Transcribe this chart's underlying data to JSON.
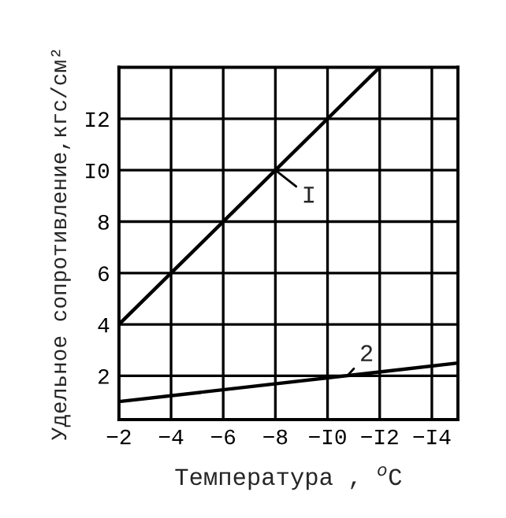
{
  "chart_data": {
    "type": "line",
    "xlabel": "Температура , $^{o}$C",
    "ylabel": "Удельное сопротивление,кгс/см²",
    "xlim": [
      -2,
      -15
    ],
    "ylim": [
      0.3,
      14
    ],
    "xticks": [
      {
        "value": -2,
        "label": "−2"
      },
      {
        "value": -4,
        "label": "−4"
      },
      {
        "value": -6,
        "label": "−6"
      },
      {
        "value": -8,
        "label": "−8"
      },
      {
        "value": -10,
        "label": "−I0"
      },
      {
        "value": -12,
        "label": "−I2"
      },
      {
        "value": -14,
        "label": "−I4"
      }
    ],
    "yticks": [
      2,
      4,
      6,
      8,
      {
        "value": 10,
        "label": "I0"
      },
      {
        "value": 12,
        "label": "I2"
      }
    ],
    "grid": true,
    "marker": "none",
    "line_style": "solid",
    "series": [
      {
        "color": "#000000",
        "x": [
          -2,
          -12
        ],
        "values": [
          4,
          14
        ]
      },
      {
        "color": "#000000",
        "x": [
          -2,
          -15
        ],
        "values": [
          1.0,
          2.5
        ]
      }
    ],
    "annotations": [
      {
        "text": "I",
        "x": -8,
        "y": 10
      },
      {
        "text": "2",
        "x": -10.8,
        "y": 2.05
      }
    ]
  }
}
